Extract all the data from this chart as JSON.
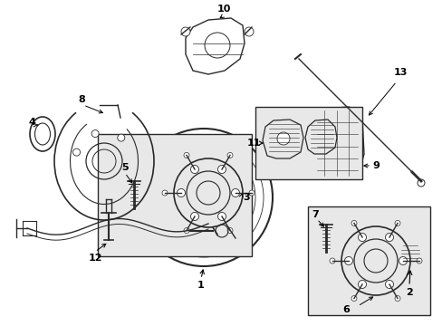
{
  "bg_color": "#ffffff",
  "fig_width": 4.89,
  "fig_height": 3.6,
  "dpi": 100,
  "line_color": "#2a2a2a",
  "box_fill": "#e8e8e8"
}
